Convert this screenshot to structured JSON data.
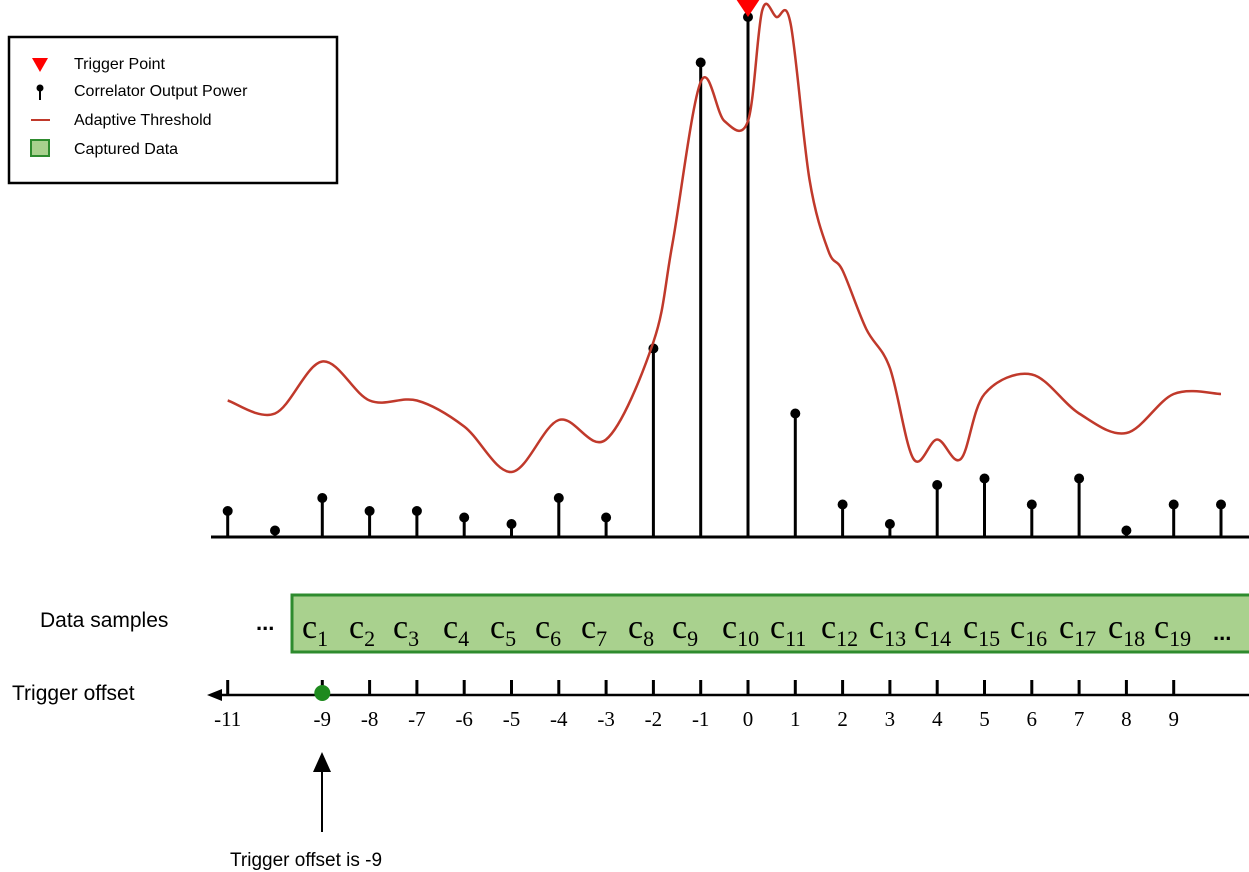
{
  "legend": {
    "items": [
      {
        "label": "Trigger Point",
        "icon": "red-triangle-icon",
        "color": "#ff0000"
      },
      {
        "label": "Correlator Output Power",
        "icon": "stem-icon",
        "color": "#000000"
      },
      {
        "label": "Adaptive Threshold",
        "icon": "line-icon",
        "color": "#c0392b"
      },
      {
        "label": "Captured Data",
        "icon": "green-box-icon",
        "color": "#92d050"
      }
    ]
  },
  "colors": {
    "threshold": "#c0392b",
    "trigger": "#ff0000",
    "capture_fill": "#a9d18e",
    "capture_border": "#2e8b2e",
    "marker": "#1e8a1e"
  },
  "stem_offsets": [
    -11,
    -10,
    -9,
    -8,
    -7,
    -6,
    -5,
    -4,
    -3,
    -2,
    -1,
    0,
    1,
    2,
    3,
    4,
    5,
    6,
    7,
    8,
    9,
    10
  ],
  "stem_heights": [
    0.04,
    0.01,
    0.06,
    0.04,
    0.04,
    0.03,
    0.02,
    0.06,
    0.03,
    0.29,
    0.73,
    0.8,
    0.19,
    0.05,
    0.02,
    0.08,
    0.09,
    0.05,
    0.09,
    0.01,
    0.05,
    0.05
  ],
  "threshold_offsets": [
    -11,
    -10,
    -9,
    -8,
    -7,
    -6,
    -5,
    -4,
    -3,
    -2,
    -1.6,
    -1,
    -0.5,
    0,
    0.3,
    0.6,
    0.9,
    1.3,
    1.7,
    2,
    2.5,
    3,
    3.5,
    4,
    4.5,
    5,
    6,
    7,
    8,
    9,
    10
  ],
  "threshold_values": [
    0.21,
    0.19,
    0.27,
    0.21,
    0.21,
    0.17,
    0.1,
    0.18,
    0.15,
    0.3,
    0.45,
    0.7,
    0.64,
    0.64,
    0.81,
    0.8,
    0.79,
    0.55,
    0.44,
    0.41,
    0.32,
    0.26,
    0.12,
    0.15,
    0.12,
    0.22,
    0.25,
    0.19,
    0.16,
    0.22,
    0.22
  ],
  "trigger_offset_value": 0,
  "data_samples": {
    "label": "Data samples",
    "ellipsis_left": "...",
    "ellipsis_right": "...",
    "samples": [
      "c1",
      "c2",
      "c3",
      "c4",
      "c5",
      "c6",
      "c7",
      "c8",
      "c9",
      "c10",
      "c11",
      "c12",
      "c13",
      "c14",
      "c15",
      "c16",
      "c17",
      "c18",
      "c19"
    ]
  },
  "trigger_axis": {
    "label": "Trigger offset",
    "ticks": [
      "-11",
      "-9",
      "-8",
      "-7",
      "-6",
      "-5",
      "-4",
      "-3",
      "-2",
      "-1",
      "0",
      "1",
      "2",
      "3",
      "4",
      "5",
      "6",
      "7",
      "8",
      "9"
    ],
    "tick_values": [
      -11,
      -9,
      -8,
      -7,
      -6,
      -5,
      -4,
      -3,
      -2,
      -1,
      0,
      1,
      2,
      3,
      4,
      5,
      6,
      7,
      8,
      9
    ],
    "selected_offset": -9
  },
  "annotation": {
    "text": "Trigger offset is -9"
  }
}
